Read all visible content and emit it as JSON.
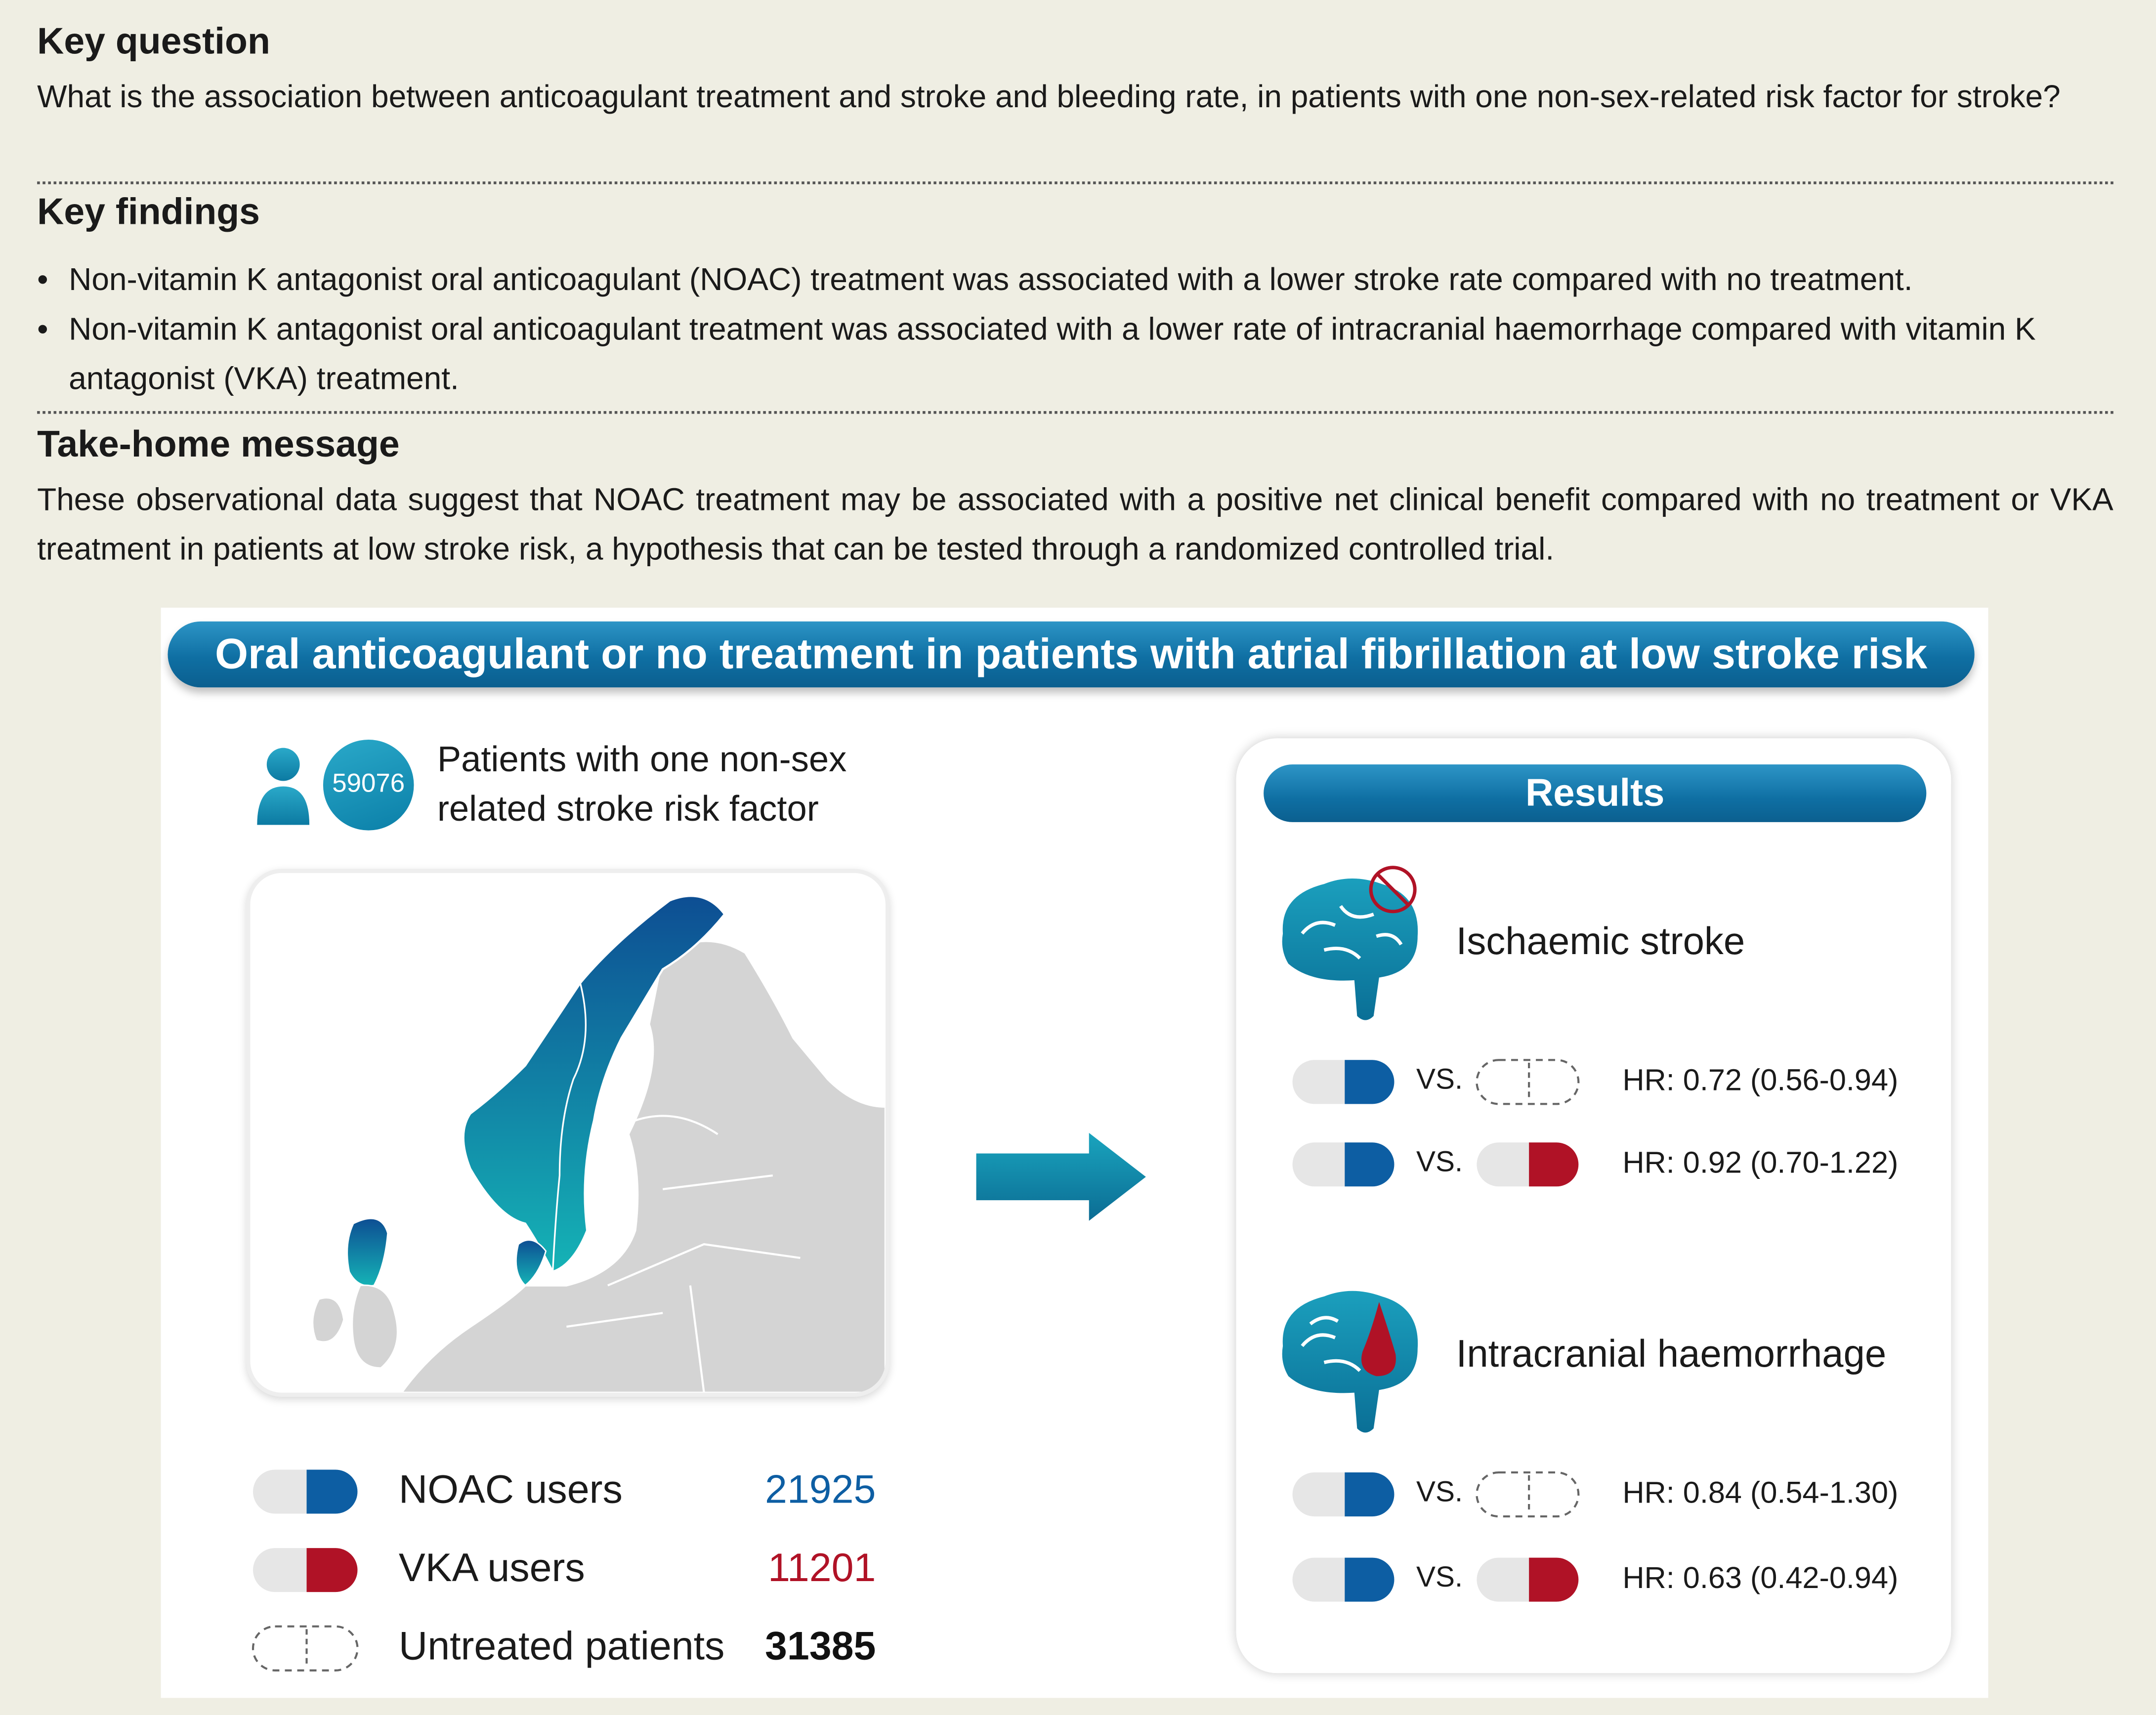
{
  "key_question": {
    "title": "Key question",
    "text": "What is the association between anticoagulant treatment and stroke and bleeding rate, in patients with one non-sex-related risk factor for stroke?"
  },
  "key_findings": {
    "title": "Key findings",
    "items": [
      "Non-vitamin K antagonist oral anticoagulant (NOAC) treatment was associated with a lower stroke rate compared with no treatment.",
      "Non-vitamin K antagonist oral anticoagulant treatment was associated with a lower rate of intracranial haemorrhage compared with vitamin K antagonist (VKA) treatment."
    ]
  },
  "take_home": {
    "title": "Take-home message",
    "text": "These observational data suggest that NOAC treatment may be associated with a positive net clinical benefit compared with no treatment or VKA treatment in patients at low stroke risk, a hypothesis that can be tested through a randomized controlled trial."
  },
  "figure": {
    "banner": "Oral anticoagulant or no treatment in patients with atrial fibrillation at low stroke risk",
    "patients": {
      "count": "59076",
      "label_line1": "Patients with one non-sex",
      "label_line2": "related stroke risk factor"
    },
    "groups": [
      {
        "label": "NOAC users",
        "value": "21925",
        "color": "#0d5ea3"
      },
      {
        "label": "VKA users",
        "value": "11201",
        "color": "#b01226"
      },
      {
        "label": "Untreated patients",
        "value": "31385",
        "color": "#111111"
      }
    ],
    "results": {
      "title": "Results",
      "vs_label": "VS.",
      "outcomes": [
        {
          "label": "Ischaemic stroke",
          "icon": "brain-no-clot-icon",
          "comparisons": [
            {
              "hr": "HR: 0.72 (0.56-0.94)",
              "against": "untreated"
            },
            {
              "hr": "HR: 0.92 (0.70-1.22)",
              "against": "vka"
            }
          ]
        },
        {
          "label": "Intracranial haemorrhage",
          "icon": "brain-bleed-icon",
          "comparisons": [
            {
              "hr": "HR: 0.84 (0.54-1.30)",
              "against": "untreated"
            },
            {
              "hr": "HR: 0.63 (0.42-0.94)",
              "against": "vka"
            }
          ]
        }
      ]
    },
    "colors": {
      "teal": "#0f8fae",
      "blue": "#0d5ea3",
      "red": "#b01226",
      "map_grey": "#d4d4d4"
    }
  }
}
